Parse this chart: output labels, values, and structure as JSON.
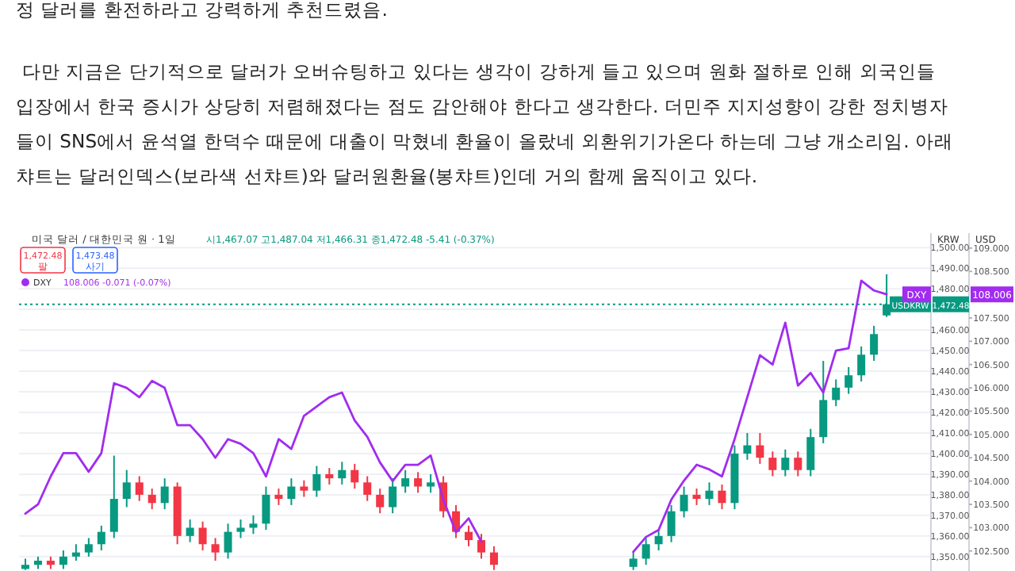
{
  "chart_data": {
    "type": "candlestick",
    "title": "미국 달러 / 대한민국 원 · 1일",
    "subtitle": "시1,467.07 고1,487.04 저1,466.31 종1,472.48 -5.41 (-0.37%)",
    "ylabel": "KRW",
    "y2label": "USD",
    "annotations": [
      "정 달러를 환전하라고 강력하게 추천드렸음.",
      "다만 지금은 단기적으로 달러가 오버슈팅하고 있다는 생각이 강하게 들고 있으며 원화 절하로 인해 외국인들",
      "입장에서 한국 증시가 상당히 저렴해졌다는 점도 감안해야 한다고 생각한다.  더민주 지지성향이 강한 정치병자",
      "들이 SNS에서 윤석열 한덕수 때문에 대출이 막혔네 환율이 올랐네 외환위기가온다 하는데 그냥 개소리임. 아래",
      "챠트는 달러인덱스(보라색 선챠트)와 달러원환율(봉챠트)인데 거의 함께 움직이고 있다.",
      "1,472.48 팔",
      "1,473.48 사기",
      "108.006 -0.071 (-0.07%)",
      {
        "text": "1,472.48",
        "y": 1472.48
      },
      "108.006"
    ],
    "categories": [
      null,
      null,
      null,
      null,
      null,
      null,
      null,
      null,
      null,
      null,
      null,
      null,
      null,
      null,
      null,
      null,
      null,
      null,
      null,
      null,
      null,
      null,
      null,
      null,
      null,
      null,
      null,
      null,
      null,
      null,
      null,
      null,
      null,
      null,
      null,
      null,
      null,
      null,
      null,
      null,
      null,
      null,
      null,
      null,
      null,
      null,
      null,
      null,
      null,
      null,
      null,
      null,
      null,
      null,
      null,
      null,
      null,
      null,
      null,
      null,
      null,
      null,
      null,
      null,
      null,
      null,
      null,
      null,
      null,
      null,
      null,
      null
    ],
    "ylim": [
      1343,
      1507
    ],
    "yticks": [
      {
        "value": 1350,
        "label": "1,350.00"
      },
      {
        "value": 1360,
        "label": "1,360.00"
      },
      {
        "value": 1370,
        "label": "1,370.00"
      },
      {
        "value": 1380,
        "label": "1,380.00"
      },
      {
        "value": 1390,
        "label": "1,390.00"
      },
      {
        "value": 1400,
        "label": "1,400.00"
      },
      {
        "value": 1410,
        "label": "1,410.00"
      },
      {
        "value": 1420,
        "label": "1,420.00"
      },
      {
        "value": 1430,
        "label": "1,430.00"
      },
      {
        "value": 1440,
        "label": "1,440.00"
      },
      {
        "value": 1450,
        "label": "1,450.00"
      },
      {
        "value": 1460,
        "label": "1,460.00"
      },
      {
        "value": 1470,
        "label": null
      },
      {
        "value": 1480,
        "label": "1,480.00"
      },
      {
        "value": 1490,
        "label": "1,490.00"
      },
      {
        "value": 1500,
        "label": "1,500.00"
      }
    ],
    "y2lim": [
      102.07,
      109.32
    ],
    "y2ticks": [
      {
        "value": 102.5,
        "label": "102.500"
      },
      {
        "value": 103,
        "label": "103.000"
      },
      {
        "value": 103.5,
        "label": "103.500"
      },
      {
        "value": 104,
        "label": "104.000"
      },
      {
        "value": 104.5,
        "label": "104.500"
      },
      {
        "value": 105,
        "label": "105.000"
      },
      {
        "value": 105.5,
        "label": "105.500"
      },
      {
        "value": 106,
        "label": "106.000"
      },
      {
        "value": 106.5,
        "label": "106.500"
      },
      {
        "value": 107,
        "label": "107.000"
      },
      {
        "value": 107.5,
        "label": "107.500"
      },
      {
        "value": 108.5,
        "label": "108.500"
      },
      {
        "value": 109,
        "label": "109.000"
      }
    ],
    "grid": "y",
    "legend": "top left",
    "ref_lines": [
      {
        "axis": "y",
        "value": 1472.48,
        "color": "#089981",
        "line_style": "dotted"
      }
    ],
    "series": [
      {
        "name": "USDKRW",
        "colors": [
          "#089981",
          "#089981",
          "#f23645",
          "#089981",
          "#089981",
          "#089981",
          "#089981",
          "#089981",
          "#089981",
          "#f23645",
          "#f23645",
          "#089981",
          "#f23645",
          "#089981",
          "#f23645",
          "#f23645",
          "#089981",
          "#089981",
          "#089981",
          "#089981",
          "#f23645",
          "#089981",
          "#f23645",
          "#089981",
          "#f23645",
          "#089981",
          "#f23645",
          "#f23645",
          "#f23645",
          "#089981",
          "#089981",
          "#f23645",
          "#089981",
          "#f23645",
          "#f23645",
          "#f23645",
          "#f23645",
          "#f23645",
          null,
          null,
          null,
          null,
          null,
          null,
          null,
          null,
          null,
          null,
          "#089981",
          "#089981",
          "#089981",
          "#089981",
          "#089981",
          "#f23645",
          "#089981",
          "#f23645",
          "#089981",
          "#089981",
          "#f23645",
          "#f23645",
          "#089981",
          "#f23645",
          "#089981",
          "#089981",
          "#089981",
          "#089981",
          "#089981",
          "#089981",
          "#089981",
          null,
          null,
          null
        ],
        "ohlc": [
          [
            1344,
            1349,
            1343.5,
            1346
          ],
          [
            1346,
            1350,
            1344,
            1348
          ],
          [
            1348,
            1350,
            1344,
            1346
          ],
          [
            1346,
            1353,
            1344,
            1350
          ],
          [
            1350,
            1356,
            1348,
            1352
          ],
          [
            1352,
            1359,
            1350,
            1356
          ],
          [
            1356,
            1365,
            1353,
            1362
          ],
          [
            1362,
            1399,
            1359,
            1378
          ],
          [
            1378,
            1392,
            1374,
            1386
          ],
          [
            1386,
            1389,
            1377,
            1380
          ],
          [
            1380,
            1383,
            1373,
            1376
          ],
          [
            1376,
            1388,
            1373,
            1384
          ],
          [
            1384,
            1386,
            1356,
            1360
          ],
          [
            1360,
            1368,
            1357,
            1364
          ],
          [
            1364,
            1367,
            1353,
            1356
          ],
          [
            1356,
            1359,
            1348,
            1352
          ],
          [
            1352,
            1366,
            1349,
            1362
          ],
          [
            1362,
            1368,
            1359,
            1364
          ],
          [
            1364,
            1370,
            1361,
            1366
          ],
          [
            1366,
            1384,
            1363,
            1380
          ],
          [
            1380,
            1383,
            1375,
            1378
          ],
          [
            1378,
            1388,
            1375,
            1384
          ],
          [
            1384,
            1387,
            1379,
            1382
          ],
          [
            1382,
            1394,
            1379,
            1390
          ],
          [
            1390,
            1393,
            1385,
            1388
          ],
          [
            1388,
            1396,
            1385,
            1392
          ],
          [
            1392,
            1395,
            1383,
            1386
          ],
          [
            1386,
            1389,
            1377,
            1380
          ],
          [
            1380,
            1383,
            1371,
            1374
          ],
          [
            1374,
            1388,
            1371,
            1384
          ],
          [
            1384,
            1392,
            1381,
            1388
          ],
          [
            1388,
            1391,
            1381,
            1384
          ],
          [
            1384,
            1390,
            1381,
            1386
          ],
          [
            1386,
            1389,
            1369,
            1372
          ],
          [
            1372,
            1375,
            1359,
            1362
          ],
          [
            1362,
            1365,
            1355,
            1358
          ],
          [
            1358,
            1361,
            1349,
            1352
          ],
          [
            1352,
            1355,
            1343.5,
            1346
          ],
          null,
          null,
          null,
          null,
          null,
          null,
          null,
          null,
          null,
          null,
          [
            1345,
            1352,
            1343.5,
            1349
          ],
          [
            1349,
            1359,
            1346,
            1356
          ],
          [
            1356,
            1363,
            1353,
            1360
          ],
          [
            1360,
            1375,
            1357,
            1372
          ],
          [
            1372,
            1384,
            1369,
            1380
          ],
          [
            1380,
            1383,
            1375,
            1378
          ],
          [
            1378,
            1386,
            1375,
            1382
          ],
          [
            1382,
            1385,
            1373,
            1376
          ],
          [
            1376,
            1404,
            1373,
            1400
          ],
          [
            1400,
            1410,
            1397,
            1404
          ],
          [
            1404,
            1410,
            1395,
            1398
          ],
          [
            1398,
            1401,
            1389,
            1392
          ],
          [
            1392,
            1402,
            1389,
            1398
          ],
          [
            1398,
            1401,
            1389,
            1392
          ],
          [
            1392,
            1412,
            1389,
            1408
          ],
          [
            1408,
            1445,
            1405,
            1426
          ],
          [
            1426,
            1436,
            1423,
            1432
          ],
          [
            1432,
            1442,
            1429,
            1438
          ],
          [
            1438,
            1452,
            1435,
            1448
          ],
          [
            1448,
            1462,
            1445,
            1458
          ],
          [
            1467.07,
            1487.04,
            1466.31,
            1472.48
          ],
          null,
          null,
          null
        ]
      },
      {
        "type": "line",
        "name": "DXY",
        "axis": "y2",
        "color": "#a12cf0",
        "values": [
          103.3,
          103.5,
          104.1,
          104.6,
          104.6,
          104.2,
          104.6,
          106.1,
          106.0,
          105.8,
          106.15,
          106.0,
          105.2,
          105.2,
          104.9,
          104.5,
          104.9,
          104.8,
          104.6,
          104.1,
          104.9,
          104.69,
          105.4,
          105.6,
          105.8,
          105.9,
          105.3,
          104.95,
          104.4,
          104.0,
          104.35,
          104.35,
          104.55,
          103.6,
          102.9,
          103.2,
          102.7,
          null,
          null,
          null,
          null,
          null,
          null,
          null,
          null,
          null,
          null,
          null,
          102.48,
          102.8,
          102.95,
          103.6,
          104.01,
          104.35,
          104.25,
          104.1,
          104.9,
          105.8,
          106.7,
          106.5,
          107.4,
          106.05,
          106.32,
          105.9,
          106.8,
          106.85,
          108.3,
          108.09,
          108.006,
          null,
          null,
          null
        ]
      }
    ]
  }
}
